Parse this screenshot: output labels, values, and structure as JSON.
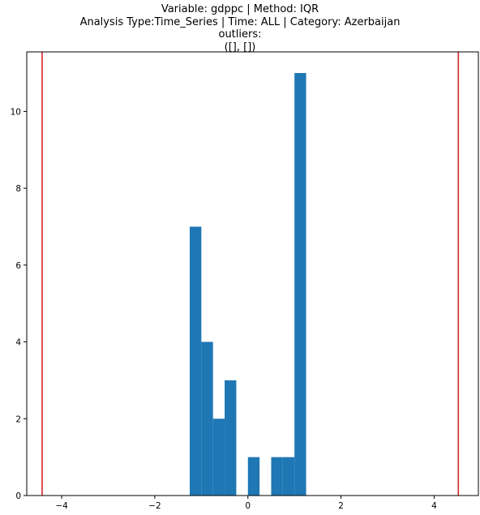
{
  "chart_data": {
    "type": "bar",
    "title_lines": [
      "Variable: gdppc | Method: IQR",
      "Analysis Type:Time_Series | Time: ALL | Category: Azerbaijan",
      "outliers:",
      "([], [])"
    ],
    "xlabel": "",
    "ylabel": "",
    "xlim": [
      -4.75,
      4.95
    ],
    "ylim": [
      0,
      11.55
    ],
    "x_ticks": [
      -4,
      -2,
      0,
      2,
      4
    ],
    "y_ticks": [
      0,
      2,
      4,
      6,
      8,
      10
    ],
    "bins": [
      {
        "x0": -1.25,
        "x1": -1.0,
        "count": 7
      },
      {
        "x0": -1.0,
        "x1": -0.75,
        "count": 4
      },
      {
        "x0": -0.75,
        "x1": -0.5,
        "count": 2
      },
      {
        "x0": -0.5,
        "x1": -0.25,
        "count": 3
      },
      {
        "x0": 0.0,
        "x1": 0.25,
        "count": 1
      },
      {
        "x0": 0.5,
        "x1": 0.75,
        "count": 1
      },
      {
        "x0": 0.75,
        "x1": 1.0,
        "count": 1
      },
      {
        "x0": 1.0,
        "x1": 1.25,
        "count": 11
      }
    ],
    "threshold_lines": [
      -4.42,
      4.52
    ],
    "colors": {
      "bars": "#1f77b4",
      "threshold": "#d62728"
    },
    "grid": false,
    "legend": "none"
  }
}
